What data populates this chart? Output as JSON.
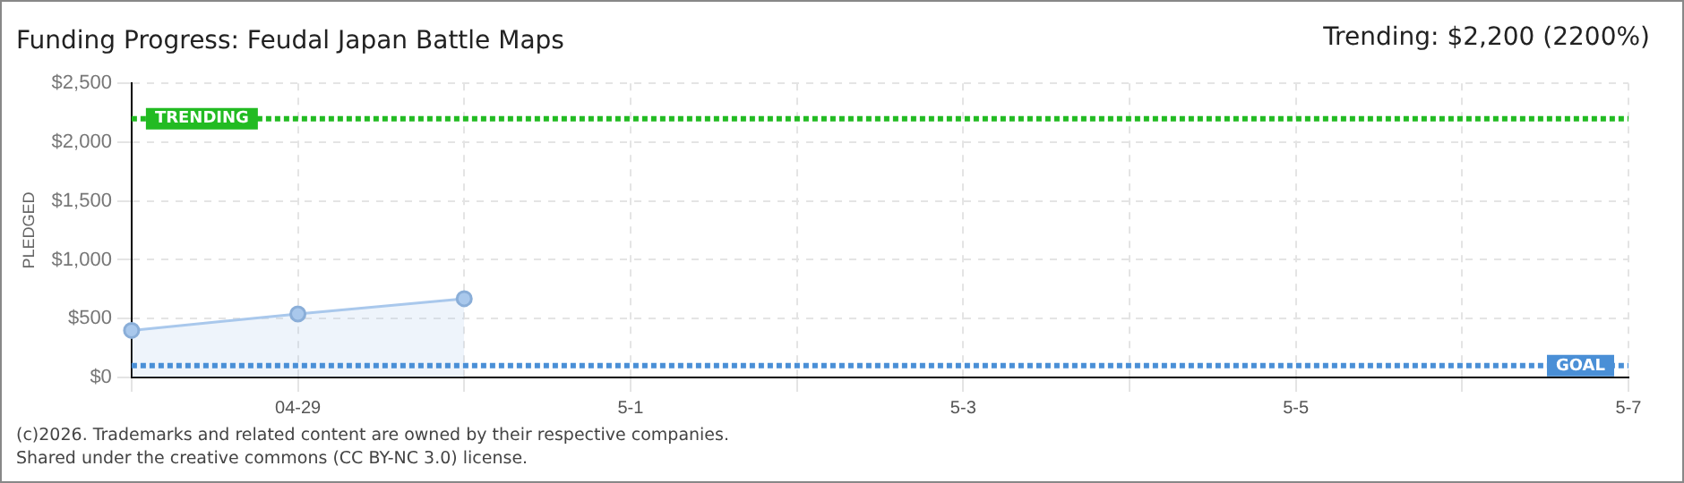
{
  "chart_data": {
    "type": "area",
    "title": "Funding Progress: Feudal Japan Battle Maps",
    "subtitle": "Trending: $2,200 (2200%)",
    "ylabel": "PLEDGED",
    "categories": [
      null,
      "04-29",
      null,
      "5-1",
      null,
      "5-3",
      null,
      "5-5",
      null,
      "5-7"
    ],
    "series": [
      {
        "color": "#a9c8ec",
        "values": [
          400,
          540,
          670,
          null,
          null,
          null,
          null,
          null,
          null,
          null
        ]
      }
    ],
    "ylim": [
      0,
      2500
    ],
    "yticks": [
      {
        "value": 0,
        "label": "$0"
      },
      {
        "value": 500,
        "label": "$500"
      },
      {
        "value": 1000,
        "label": "$1,000"
      },
      {
        "value": 1500,
        "label": "$1,500"
      },
      {
        "value": 2000,
        "label": "$2,000"
      },
      {
        "value": 2500,
        "label": "$2,500"
      }
    ],
    "grid": true,
    "legend": false,
    "marker": "circle",
    "ref_lines": [
      {
        "axis": "y",
        "value": 2200,
        "label": "TRENDING",
        "color": "#22bb22",
        "line_style": "dotted"
      },
      {
        "axis": "y",
        "value": 100,
        "label": "GOAL",
        "color": "#4a8fd6",
        "line_style": "dotted"
      }
    ],
    "annotations": [
      "(c)2026. Trademarks and related content are owned by their respective companies.",
      "Shared under the creative commons (CC BY-NC 3.0) license."
    ]
  }
}
